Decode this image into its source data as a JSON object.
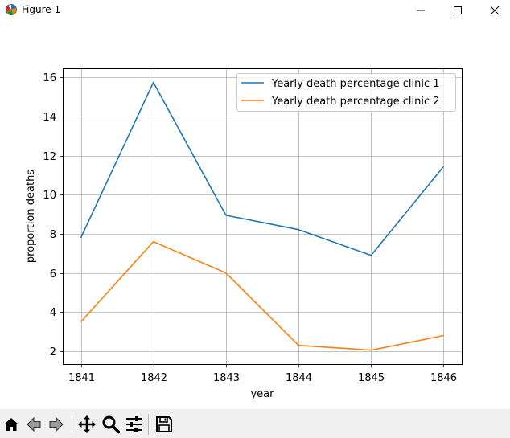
{
  "window": {
    "title": "Figure 1",
    "controls": [
      "minimize",
      "maximize",
      "close"
    ]
  },
  "toolbar": {
    "buttons": [
      {
        "name": "home-icon"
      },
      {
        "name": "back-arrow-icon"
      },
      {
        "name": "forward-arrow-icon"
      },
      {
        "name": "pan-move-icon"
      },
      {
        "name": "zoom-magnifier-icon"
      },
      {
        "name": "configure-subplots-icon"
      },
      {
        "name": "save-disk-icon"
      }
    ]
  },
  "chart_data": {
    "type": "line",
    "title": "",
    "xlabel": "year",
    "ylabel": "proportion deaths",
    "x": [
      1841,
      1842,
      1843,
      1844,
      1845,
      1846
    ],
    "xticks": [
      "1841",
      "1842",
      "1843",
      "1844",
      "1845",
      "1846"
    ],
    "yticks": [
      "2",
      "4",
      "6",
      "8",
      "10",
      "12",
      "14",
      "16"
    ],
    "xlim": [
      1840.75,
      1846.25
    ],
    "ylim": [
      1.34,
      16.47
    ],
    "grid": true,
    "legend_position": "top-right",
    "series": [
      {
        "name": "Yearly death percentage clinic 1",
        "color": "#1f77b4",
        "values": [
          7.8,
          15.75,
          8.95,
          8.22,
          6.9,
          11.45
        ]
      },
      {
        "name": "Yearly death percentage clinic 2",
        "color": "#ff7f0e",
        "values": [
          3.5,
          7.6,
          6.0,
          2.3,
          2.05,
          2.8
        ]
      }
    ]
  }
}
